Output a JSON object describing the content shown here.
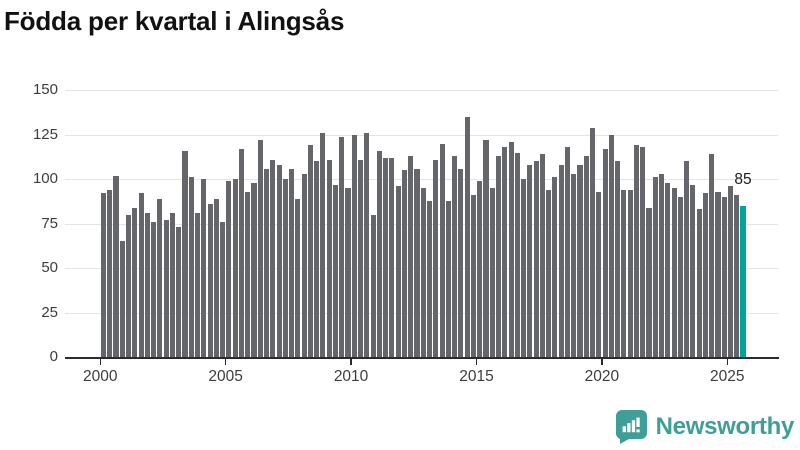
{
  "header": {
    "title": "Födda per kvartal i Alingsås"
  },
  "chart_data": {
    "type": "bar",
    "title": "Födda per kvartal i Alingsås",
    "xlabel": "",
    "ylabel": "",
    "ylim": [
      0,
      150
    ],
    "y_ticks": [
      0,
      25,
      50,
      75,
      100,
      125,
      150
    ],
    "grid": true,
    "legend": false,
    "x": [
      "2000Q1",
      "2000Q2",
      "2000Q3",
      "2000Q4",
      "2001Q1",
      "2001Q2",
      "2001Q3",
      "2001Q4",
      "2002Q1",
      "2002Q2",
      "2002Q3",
      "2002Q4",
      "2003Q1",
      "2003Q2",
      "2003Q3",
      "2003Q4",
      "2004Q1",
      "2004Q2",
      "2004Q3",
      "2004Q4",
      "2005Q1",
      "2005Q2",
      "2005Q3",
      "2005Q4",
      "2006Q1",
      "2006Q2",
      "2006Q3",
      "2006Q4",
      "2007Q1",
      "2007Q2",
      "2007Q3",
      "2007Q4",
      "2008Q1",
      "2008Q2",
      "2008Q3",
      "2008Q4",
      "2009Q1",
      "2009Q2",
      "2009Q3",
      "2009Q4",
      "2010Q1",
      "2010Q2",
      "2010Q3",
      "2010Q4",
      "2011Q1",
      "2011Q2",
      "2011Q3",
      "2011Q4",
      "2012Q1",
      "2012Q2",
      "2012Q3",
      "2012Q4",
      "2013Q1",
      "2013Q2",
      "2013Q3",
      "2013Q4",
      "2014Q1",
      "2014Q2",
      "2014Q3",
      "2014Q4",
      "2015Q1",
      "2015Q2",
      "2015Q3",
      "2015Q4",
      "2016Q1",
      "2016Q2",
      "2016Q3",
      "2016Q4",
      "2017Q1",
      "2017Q2",
      "2017Q3",
      "2017Q4",
      "2018Q1",
      "2018Q2",
      "2018Q3",
      "2018Q4",
      "2019Q1",
      "2019Q2",
      "2019Q3",
      "2019Q4",
      "2020Q1",
      "2020Q2",
      "2020Q3",
      "2020Q4",
      "2021Q1",
      "2021Q2",
      "2021Q3",
      "2021Q4",
      "2022Q1",
      "2022Q2",
      "2022Q3",
      "2022Q4",
      "2023Q1",
      "2023Q2",
      "2023Q3",
      "2023Q4",
      "2024Q1",
      "2024Q2",
      "2024Q3",
      "2024Q4",
      "2025Q1",
      "2025Q2",
      "2025Q3"
    ],
    "values": [
      92,
      94,
      102,
      65,
      80,
      84,
      92,
      81,
      76,
      89,
      77,
      81,
      73,
      116,
      101,
      81,
      100,
      86,
      89,
      76,
      99,
      100,
      117,
      93,
      98,
      122,
      106,
      111,
      108,
      100,
      106,
      89,
      103,
      119,
      110,
      126,
      111,
      97,
      124,
      95,
      125,
      111,
      126,
      80,
      116,
      112,
      112,
      96,
      105,
      113,
      106,
      95,
      88,
      111,
      120,
      88,
      113,
      106,
      135,
      91,
      99,
      122,
      95,
      113,
      118,
      121,
      115,
      100,
      108,
      110,
      114,
      94,
      101,
      108,
      118,
      103,
      108,
      113,
      129,
      93,
      117,
      125,
      110,
      94,
      94,
      119,
      118,
      84,
      101,
      103,
      98,
      95,
      90,
      110,
      97,
      83,
      92,
      114,
      93,
      90,
      96,
      91,
      85
    ],
    "x_tick_labels": [
      "2000",
      "2005",
      "2010",
      "2015",
      "2020",
      "2025"
    ],
    "x_tick_quarter_indices": [
      0,
      20,
      40,
      60,
      80,
      100
    ],
    "bar_color": "#65656c",
    "highlight": {
      "index": 102,
      "period": "2025Q3",
      "value": 85,
      "label": "85",
      "color": "#00a39b"
    },
    "axis_color": "#2b2b2b",
    "gridline_color": "#e4e4e4"
  },
  "footer": {
    "brand": "Newsworthy",
    "brand_color": "#3f9e98"
  }
}
